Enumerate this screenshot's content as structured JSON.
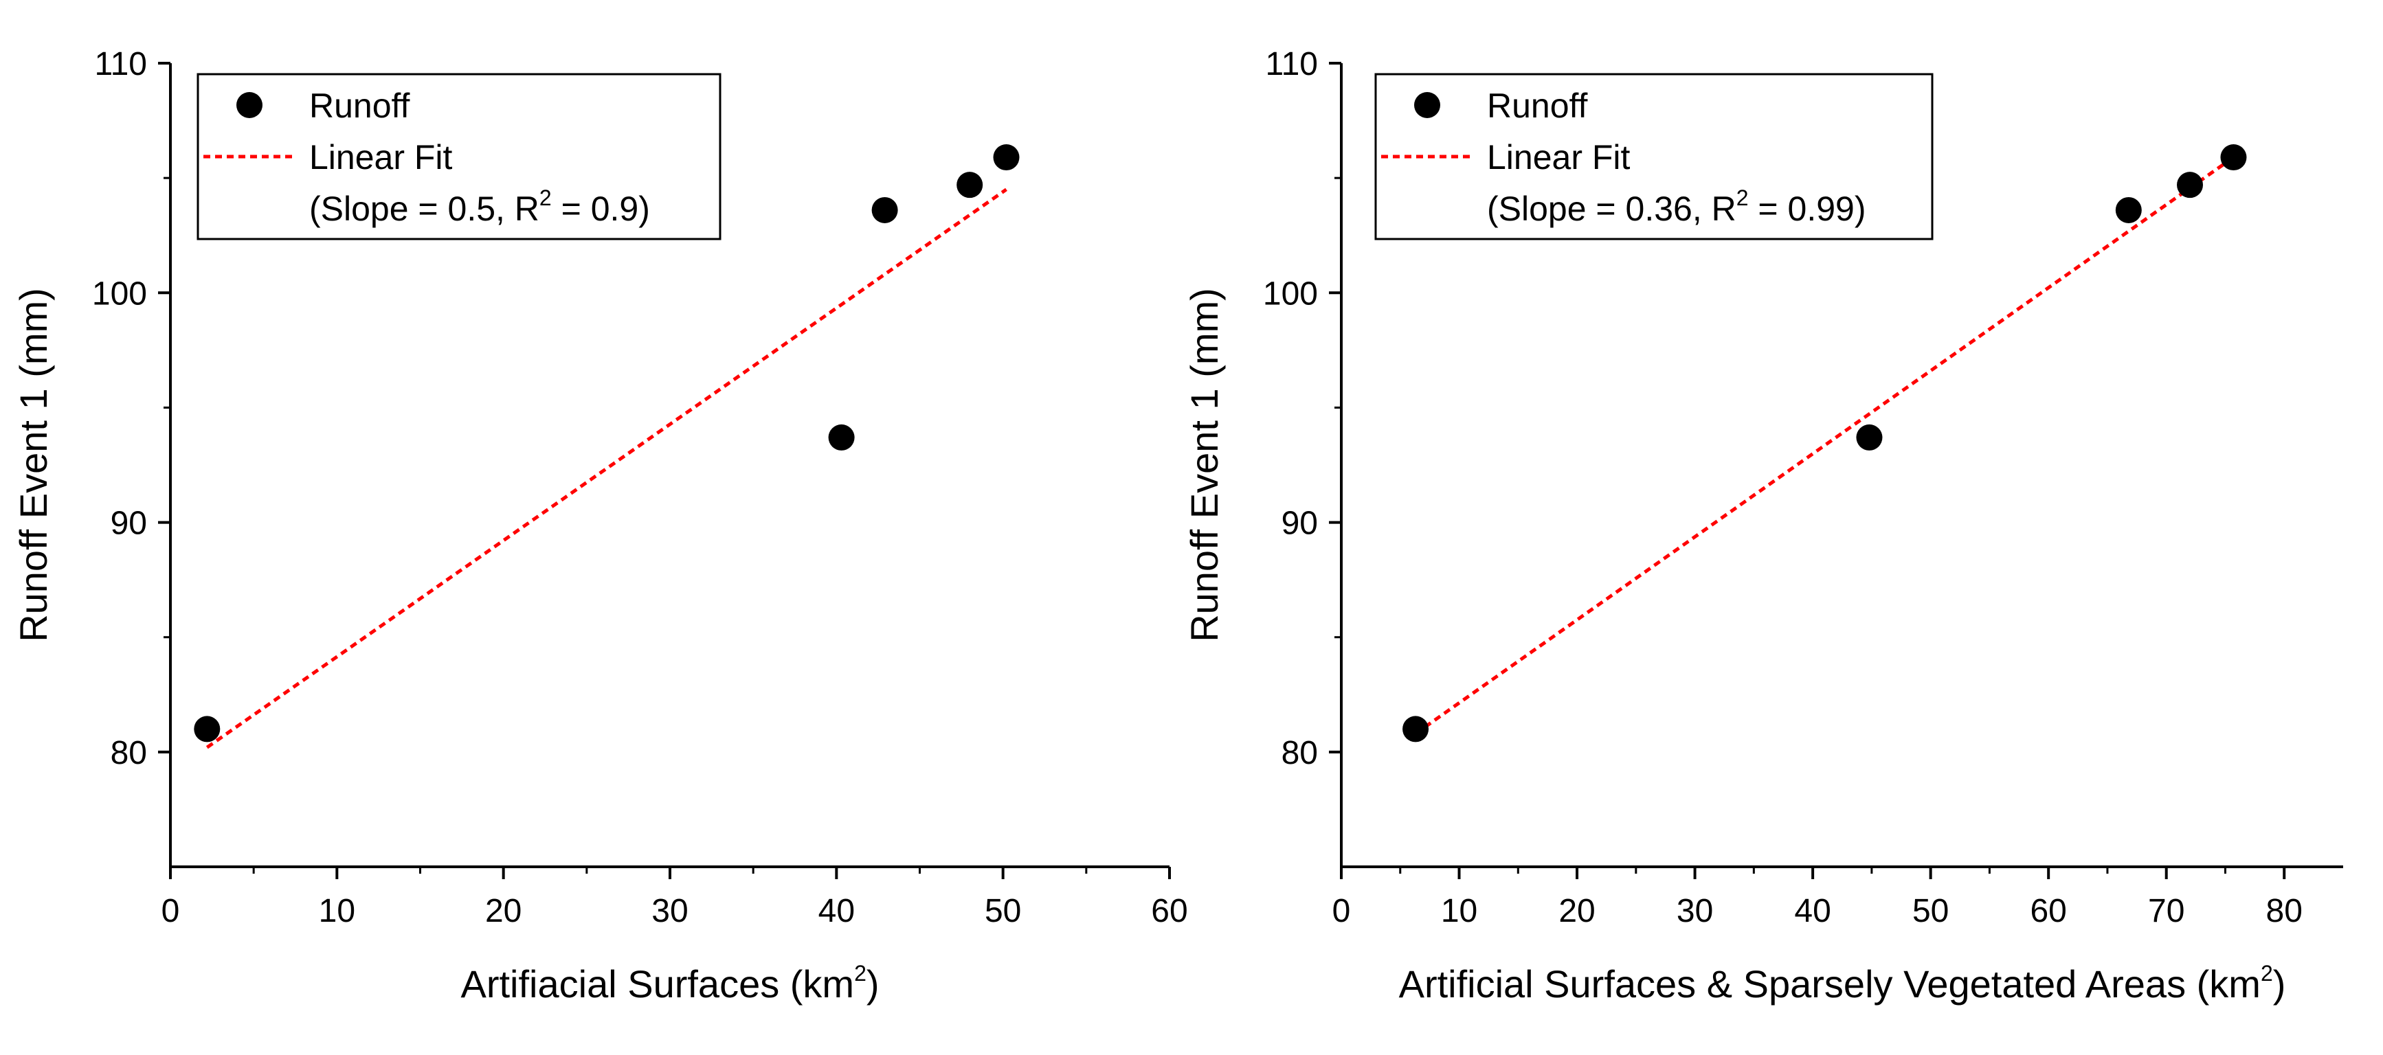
{
  "chart_data": [
    {
      "type": "scatter",
      "xlabel": "Artifiacial Surfaces (km",
      "xlabel_sup": "2",
      "xlabel_end": ")",
      "ylabel": "Runoff Event 1 (mm)",
      "xlim": [
        0,
        60
      ],
      "ylim": [
        75,
        110
      ],
      "xticks": [
        0,
        10,
        20,
        30,
        40,
        50,
        60
      ],
      "yticks": [
        80,
        90,
        100,
        110
      ],
      "series": [
        {
          "name": "Runoff",
          "x": [
            2.2,
            40.3,
            42.9,
            48.0,
            50.2
          ],
          "y": [
            81.0,
            93.7,
            103.6,
            104.7,
            105.9
          ]
        }
      ],
      "fit": {
        "name": "Linear Fit",
        "x": [
          2.2,
          50.2
        ],
        "y": [
          80.2,
          104.5
        ],
        "color": "#ff0000"
      },
      "legend": {
        "position": "top-left",
        "marker_label": "Runoff",
        "line_label": "Linear Fit",
        "stat_prefix": "(Slope = 0.5, R",
        "stat_sup": "2",
        "stat_suffix": " = 0.9)"
      }
    },
    {
      "type": "scatter",
      "xlabel": "Artificial Surfaces & Sparsely Vegetated Areas (km",
      "xlabel_sup": "2",
      "xlabel_end": ")",
      "ylabel": "Runoff Event 1 (mm)",
      "xlim": [
        0,
        85
      ],
      "ylim": [
        75,
        110
      ],
      "xticks": [
        0,
        10,
        20,
        30,
        40,
        50,
        60,
        70,
        80
      ],
      "yticks": [
        80,
        90,
        100,
        110
      ],
      "series": [
        {
          "name": "Runoff",
          "x": [
            6.3,
            44.8,
            66.8,
            72.0,
            75.7
          ],
          "y": [
            81.0,
            93.7,
            103.6,
            104.7,
            105.9
          ]
        }
      ],
      "fit": {
        "name": "Linear Fit",
        "x": [
          6.3,
          75.7
        ],
        "y": [
          80.8,
          105.9
        ],
        "color": "#ff0000"
      },
      "legend": {
        "position": "top-left",
        "marker_label": "Runoff",
        "line_label": "Linear Fit",
        "stat_prefix": "(Slope = 0.36, R",
        "stat_sup": "2",
        "stat_suffix": " = 0.99)"
      }
    }
  ]
}
